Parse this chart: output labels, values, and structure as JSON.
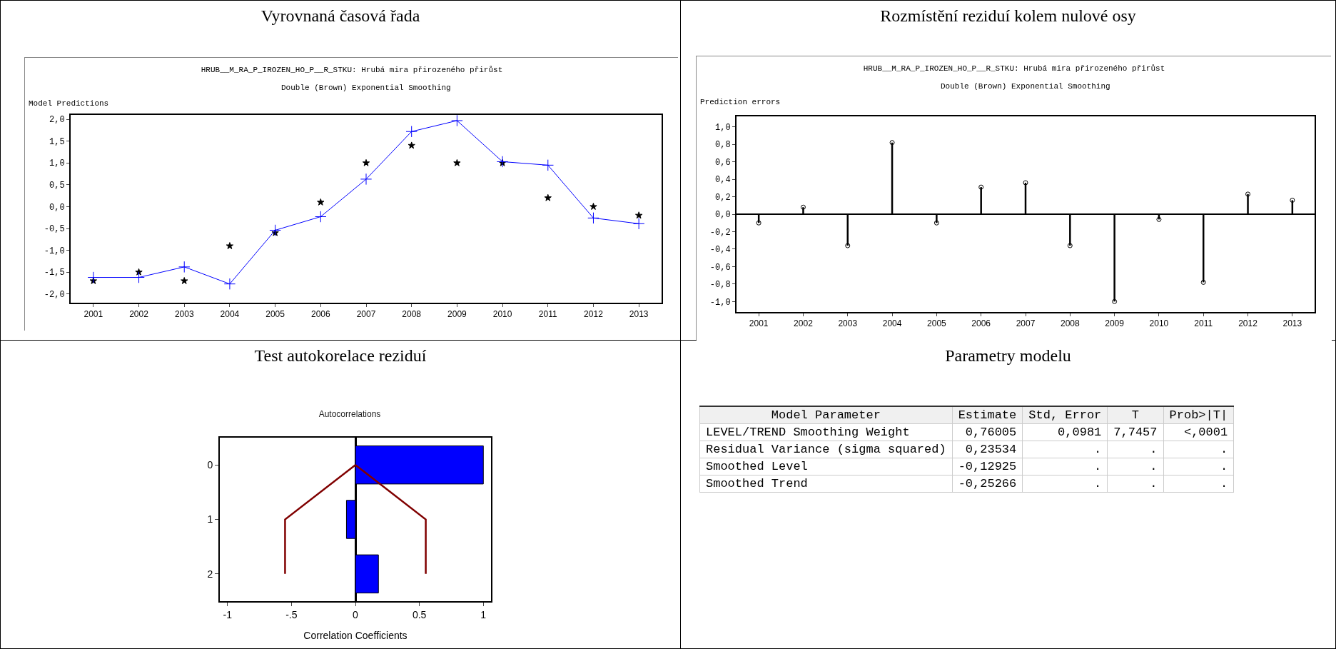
{
  "chart_data": [
    {
      "type": "line",
      "title": "Vyrovnaná časová řada",
      "subtitle": "HRUB__M_RA_P_IROZEN_HO_P__R_STKU: Hrubá mira přirozeného přirůst",
      "annotations": [
        "Double (Brown) Exponential Smoothing"
      ],
      "ylabel": "Model Predictions",
      "categories": [
        "2001",
        "2002",
        "2003",
        "2004",
        "2005",
        "2006",
        "2007",
        "2008",
        "2009",
        "2010",
        "2011",
        "2012",
        "2013"
      ],
      "ylim": [
        -2.2,
        2.1
      ],
      "yticks": [
        {
          "value": -2,
          "label": "-2,0"
        },
        {
          "value": -1.5,
          "label": "-1,5"
        },
        {
          "value": -1,
          "label": "-1,0"
        },
        {
          "value": -0.5,
          "label": "-0,5"
        },
        {
          "value": 0,
          "label": "0,0"
        },
        {
          "value": 0.5,
          "label": "0,5"
        },
        {
          "value": 1,
          "label": "1,0"
        },
        {
          "value": 1.5,
          "label": "1,5"
        },
        {
          "value": 2,
          "label": "2,0"
        }
      ],
      "series": [
        {
          "type": "line",
          "marker": "cross",
          "color": "#0000ff",
          "values": [
            -1.62,
            -1.62,
            -1.38,
            -1.77,
            -0.54,
            -0.23,
            0.63,
            1.72,
            1.97,
            1.03,
            0.95,
            -0.26,
            -0.39
          ]
        },
        {
          "type": "scatter",
          "marker": "star",
          "color": "#000000",
          "values": [
            -1.7,
            -1.5,
            -1.7,
            -0.9,
            -0.6,
            0.1,
            1.0,
            1.4,
            1.0,
            1.0,
            0.2,
            0.0,
            -0.2
          ]
        }
      ]
    },
    {
      "type": "lollipop",
      "title": "Rozmístění reziduí kolem nulové osy",
      "subtitle": "HRUB__M_RA_P_IROZEN_HO_P__R_STKU: Hrubá mira přirozeného přirůst",
      "annotations": [
        "Double (Brown) Exponential Smoothing"
      ],
      "ylabel": "Prediction errors",
      "marker": "circle",
      "color": "#000000",
      "categories": [
        "2001",
        "2002",
        "2003",
        "2004",
        "2005",
        "2006",
        "2007",
        "2008",
        "2009",
        "2010",
        "2011",
        "2012",
        "2013"
      ],
      "ylim": [
        -1.12,
        1.12
      ],
      "yticks": [
        {
          "value": -1,
          "label": "-1,0"
        },
        {
          "value": -0.8,
          "label": "-0,8"
        },
        {
          "value": -0.6,
          "label": "-0,6"
        },
        {
          "value": -0.4,
          "label": "-0,4"
        },
        {
          "value": -0.2,
          "label": "-0,2"
        },
        {
          "value": 0,
          "label": "0,0"
        },
        {
          "value": 0.2,
          "label": "0,2"
        },
        {
          "value": 0.4,
          "label": "0,4"
        },
        {
          "value": 0.6,
          "label": "0,6"
        },
        {
          "value": 0.8,
          "label": "0,8"
        },
        {
          "value": 1,
          "label": "1,0"
        }
      ],
      "values": [
        -0.1,
        0.08,
        -0.36,
        0.82,
        -0.1,
        0.31,
        0.36,
        -0.36,
        -1.0,
        -0.06,
        -0.78,
        0.23,
        0.16
      ]
    },
    {
      "type": "bar",
      "orientation": "horizontal",
      "title": "Test autokorelace reziduí",
      "subtitle": "Autocorrelations",
      "xlabel": "Correlation Coefficients",
      "categories": [
        "0",
        "1",
        "2"
      ],
      "xlim": [
        -1.06,
        1.06
      ],
      "xticks": [
        -1,
        {
          "value": -0.5,
          "label": "-.5"
        },
        0,
        0.5,
        1
      ],
      "series": [
        {
          "type": "bar",
          "color": "#0000ff",
          "values": [
            1.0,
            -0.07,
            0.18
          ]
        },
        {
          "type": "line",
          "color": "#800000",
          "values": [
            0,
            -0.55,
            -0.55
          ]
        },
        {
          "type": "line",
          "color": "#800000",
          "values": [
            0,
            0.55,
            0.55
          ]
        }
      ]
    },
    {
      "type": "other",
      "title": "Parametry modelu",
      "ylabel": "Model Parameter",
      "categories": [
        "Estimate",
        "Std, Error",
        "T",
        "Prob>|T|"
      ],
      "y_categories": [
        "LEVEL/TREND Smoothing Weight",
        "Residual Variance (sigma squared)",
        "Smoothed Level",
        "Smoothed Trend"
      ],
      "cell_labels": [
        [
          "0,76005",
          "0,0981",
          "7,7457",
          "<,0001"
        ],
        [
          "0,23534",
          ".",
          ".",
          "."
        ],
        [
          "-0,12925",
          ".",
          ".",
          "."
        ],
        [
          "-0,25266",
          ".",
          ".",
          "."
        ]
      ]
    }
  ]
}
